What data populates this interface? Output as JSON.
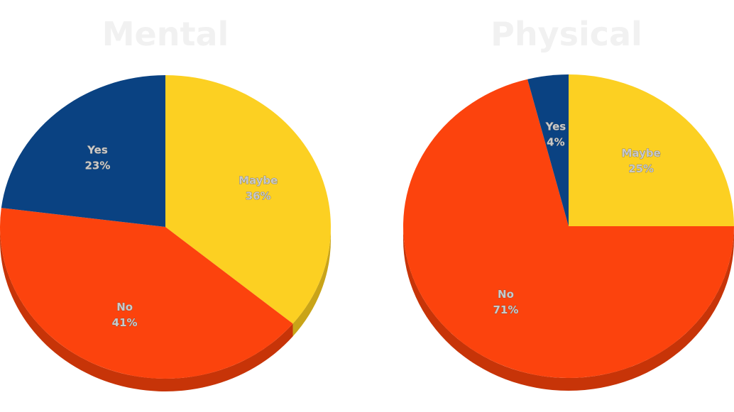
{
  "chart_data": [
    {
      "type": "pie",
      "title": "Mental",
      "slices": [
        {
          "label": "Maybe",
          "value": 36,
          "value_label": "36%",
          "color": "#FCD022"
        },
        {
          "label": "No",
          "value": 41,
          "value_label": "41%",
          "color": "#FC430D"
        },
        {
          "label": "Yes",
          "value": 23,
          "value_label": "23%",
          "color": "#0A4282"
        }
      ],
      "start": "12 o'clock, clockwise",
      "style": "3d-tilted"
    },
    {
      "type": "pie",
      "title": "Physical",
      "slices": [
        {
          "label": "Maybe",
          "value": 25,
          "value_label": "25%",
          "color": "#FCD022"
        },
        {
          "label": "No",
          "value": 71,
          "value_label": "71%",
          "color": "#FC430D"
        },
        {
          "label": "Yes",
          "value": 4,
          "value_label": "4%",
          "color": "#0A4282"
        }
      ],
      "start": "12 o'clock, clockwise",
      "style": "3d-tilted"
    }
  ]
}
